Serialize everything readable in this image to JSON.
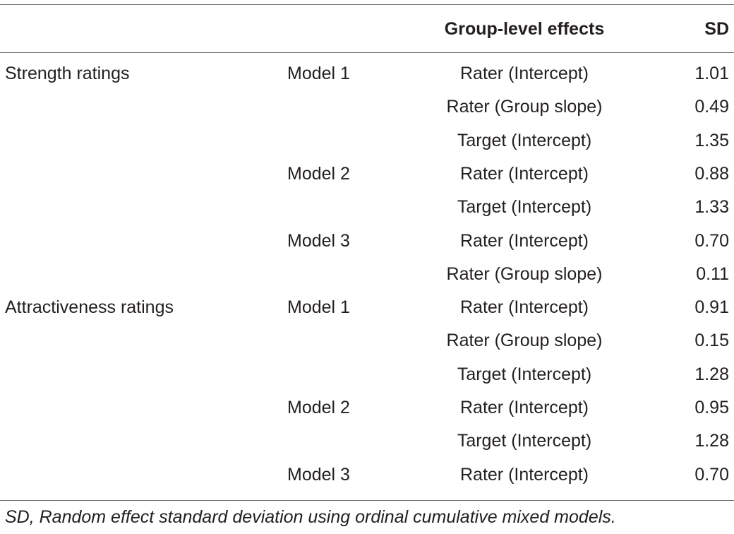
{
  "table": {
    "headers": {
      "rating": "",
      "model": "",
      "effect": "Group-level effects",
      "sd": "SD"
    },
    "rows": [
      {
        "rating": "Strength ratings",
        "model": "Model 1",
        "effect": "Rater (Intercept)",
        "sd": "1.01"
      },
      {
        "rating": "",
        "model": "",
        "effect": "Rater (Group slope)",
        "sd": "0.49"
      },
      {
        "rating": "",
        "model": "",
        "effect": "Target (Intercept)",
        "sd": "1.35"
      },
      {
        "rating": "",
        "model": "Model 2",
        "effect": "Rater (Intercept)",
        "sd": "0.88"
      },
      {
        "rating": "",
        "model": "",
        "effect": "Target (Intercept)",
        "sd": "1.33"
      },
      {
        "rating": "",
        "model": "Model 3",
        "effect": "Rater (Intercept)",
        "sd": "0.70"
      },
      {
        "rating": "",
        "model": "",
        "effect": "Rater (Group slope)",
        "sd": "0.11"
      },
      {
        "rating": "Attractiveness ratings",
        "model": "Model 1",
        "effect": "Rater (Intercept)",
        "sd": "0.91"
      },
      {
        "rating": "",
        "model": "",
        "effect": "Rater (Group slope)",
        "sd": "0.15"
      },
      {
        "rating": "",
        "model": "",
        "effect": "Target (Intercept)",
        "sd": "1.28"
      },
      {
        "rating": "",
        "model": "Model 2",
        "effect": "Rater (Intercept)",
        "sd": "0.95"
      },
      {
        "rating": "",
        "model": "",
        "effect": "Target (Intercept)",
        "sd": "1.28"
      },
      {
        "rating": "",
        "model": "Model 3",
        "effect": "Rater (Intercept)",
        "sd": "0.70"
      }
    ]
  },
  "footnote": "SD, Random effect standard deviation using ordinal cumulative mixed models.",
  "colors": {
    "text": "#231f20",
    "rule": "#6d6e71"
  }
}
